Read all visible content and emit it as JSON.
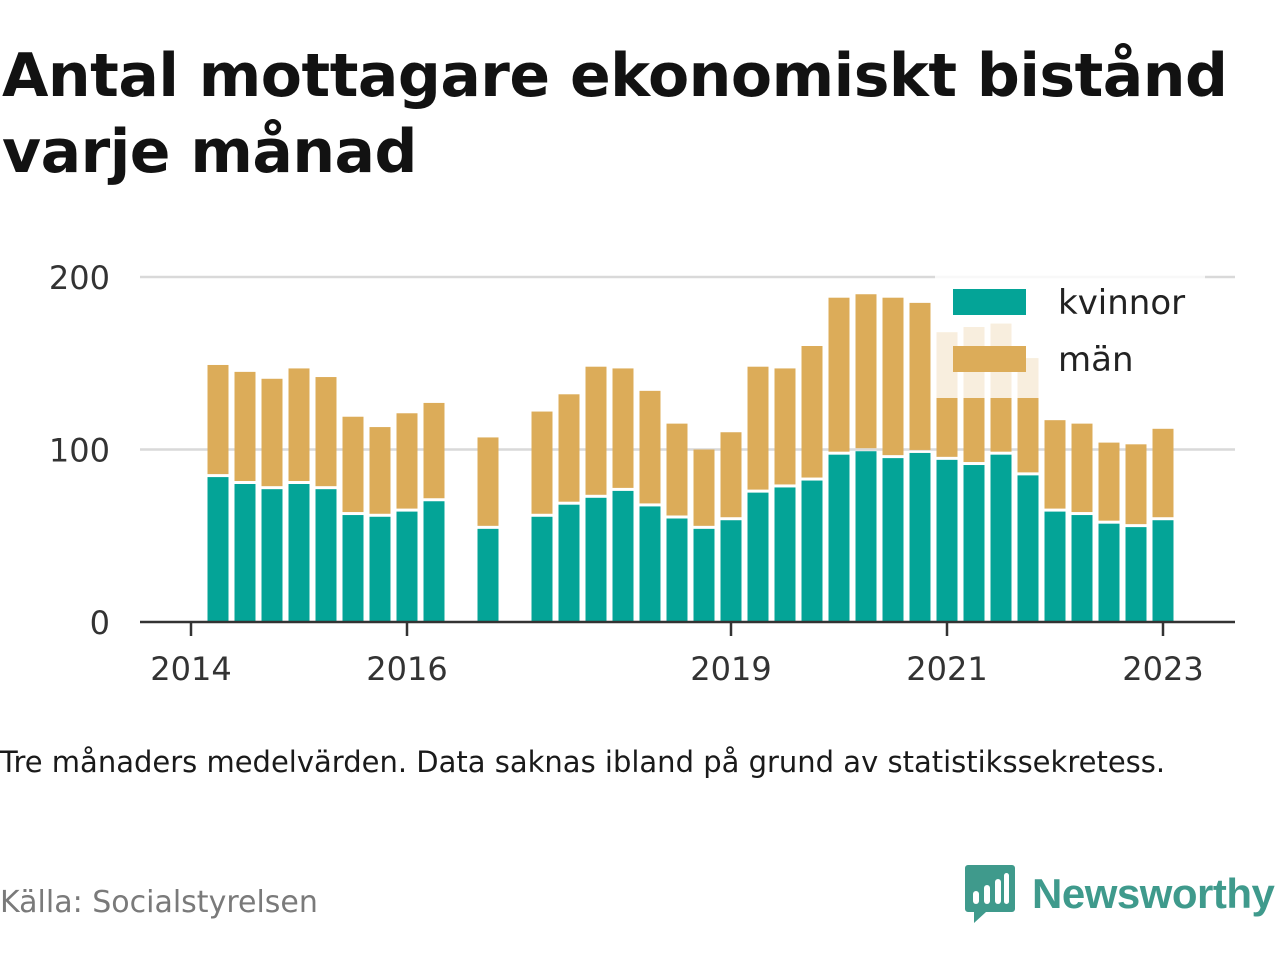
{
  "title": "Antal mottagare ekonomiskt bistånd varje månad",
  "note": "Tre månaders medelvärden. Data saknas ibland på grund av statistikssekretess.",
  "source": "Källa: Socialstyrelsen",
  "brand": "Newsworthy",
  "colors": {
    "kvinnor": "#04a497",
    "man": "#dcac59",
    "grid": "#d9d9d9",
    "brand": "#3f9a8c"
  },
  "chart_data": {
    "type": "bar",
    "stacked": true,
    "title": "Antal mottagare ekonomiskt bistånd varje månad",
    "ylim": [
      0,
      200
    ],
    "yticks": [
      0,
      100,
      200
    ],
    "xticks": [
      "2014",
      "2016",
      "2019",
      "2021",
      "2023"
    ],
    "legend": "top-right",
    "grid": true,
    "x": [
      2014.25,
      2014.5,
      2014.75,
      2015.0,
      2015.25,
      2015.5,
      2015.75,
      2016.0,
      2016.25,
      2016.75,
      2017.25,
      2017.5,
      2017.75,
      2018.0,
      2018.25,
      2018.5,
      2018.75,
      2019.0,
      2019.25,
      2019.5,
      2019.75,
      2020.0,
      2020.25,
      2020.5,
      2020.75,
      2021.0,
      2021.25,
      2021.5,
      2021.75,
      2022.0,
      2022.25,
      2022.5,
      2022.75,
      2023.0
    ],
    "series": [
      {
        "name": "kvinnor",
        "values": [
          84,
          80,
          77,
          80,
          77,
          62,
          61,
          64,
          70,
          54,
          61,
          68,
          72,
          76,
          67,
          60,
          54,
          59,
          75,
          78,
          82,
          97,
          99,
          95,
          98,
          94,
          91,
          97,
          85,
          64,
          62,
          57,
          55,
          59
        ]
      },
      {
        "name": "män",
        "values": [
          65,
          65,
          64,
          67,
          65,
          57,
          52,
          57,
          57,
          53,
          61,
          64,
          76,
          71,
          67,
          55,
          46,
          51,
          73,
          69,
          78,
          91,
          91,
          93,
          87,
          74,
          80,
          76,
          68,
          53,
          53,
          47,
          48,
          53
        ]
      }
    ]
  }
}
